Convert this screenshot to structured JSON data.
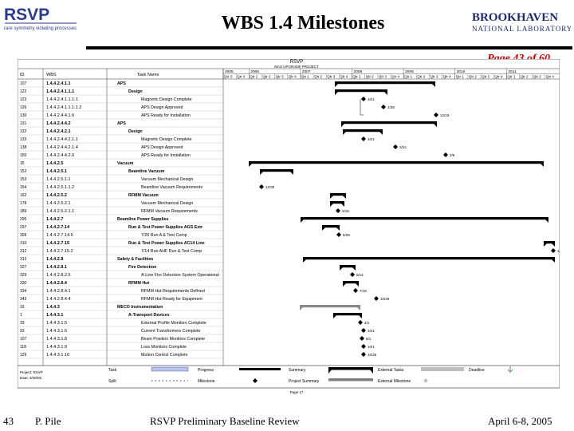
{
  "slide": {
    "title": "WBS 1.4 Milestones",
    "page_link": "Page 43 of 60",
    "left_logo": {
      "name": "RSVP",
      "tagline": "rare symmetry violating processes"
    },
    "right_logo": {
      "line1": "BROOKHAVEN",
      "line2": "NATIONAL LABORATORY"
    },
    "footer": {
      "slide_number": "43",
      "author": "P. Pile",
      "event": "RSVP Preliminary Baseline Review",
      "date": "April 6-8, 2005"
    }
  },
  "gantt": {
    "header_title": "RSVP",
    "header_subtitle": "MAS UPGRADE PROJECT",
    "col_id": "ID",
    "col_wbs": "WBS",
    "col_task": "Task Name",
    "years": [
      "2005",
      "2006",
      "2007",
      "2008",
      "2009",
      "2010",
      "2011"
    ],
    "quarters": [
      "Qtr 3",
      "Qtr 4",
      "Qtr 1",
      "Qtr 2",
      "Qtr 3",
      "Qtr 4",
      "Qtr 1",
      "Qtr 2",
      "Qtr 3",
      "Qtr 4",
      "Qtr 1",
      "Qtr 2",
      "Qtr 3",
      "Qtr 4",
      "Qtr 1",
      "Qtr 2",
      "Qtr 3",
      "Qtr 4",
      "Qtr 1",
      "Qtr 2",
      "Qtr 3",
      "Qtr 4",
      "Qtr 1",
      "Qtr 2",
      "Qtr 3",
      "Qtr 4"
    ],
    "rows": [
      {
        "id": "107",
        "wbs": "1.4.4.2.4.1.1",
        "task": "APS",
        "indent": 0
      },
      {
        "id": "122",
        "wbs": "1.4.4.2.4.1.1.1",
        "task": "Design",
        "indent": 1
      },
      {
        "id": "123",
        "wbs": "1.4.4.2.4.1.1.1.1",
        "task": "Magnetic Design Complete",
        "indent": 2
      },
      {
        "id": "126",
        "wbs": "1.4.4.2.4.1.1.1.1.2",
        "task": "APS Design Approved",
        "indent": 2
      },
      {
        "id": "130",
        "wbs": "1.4.4.2.4.4.1.6",
        "task": "APS Ready for Installation",
        "indent": 2
      },
      {
        "id": "131",
        "wbs": "1.4.4.2.4.4.2",
        "task": "APS",
        "indent": 0
      },
      {
        "id": "132",
        "wbs": "1.4.4.2.4.2.1",
        "task": "Design",
        "indent": 1
      },
      {
        "id": "133",
        "wbs": "1.4.4.2.4.4.2.1.1",
        "task": "Magnetic Design Complete",
        "indent": 2
      },
      {
        "id": "138",
        "wbs": "1.4.4.2.4.4.2.1.4",
        "task": "APS Design Approved",
        "indent": 2
      },
      {
        "id": "150",
        "wbs": "1.4.4.2.4.4.2.6",
        "task": "APS Ready for Installation",
        "indent": 2
      },
      {
        "id": "15",
        "wbs": "1.4.4.2.5",
        "task": "Vacuum",
        "indent": 0
      },
      {
        "id": "152",
        "wbs": "1.4.4.2.5.1",
        "task": "Beamline Vacuum",
        "indent": 1
      },
      {
        "id": "153",
        "wbs": "1.4.4.2.5.1.1",
        "task": "Vacuum Mechanical Design",
        "indent": 2
      },
      {
        "id": "154",
        "wbs": "1.4.4.2.5.1.1.2",
        "task": "Beamline Vacuum Requirements",
        "indent": 2
      },
      {
        "id": "162",
        "wbs": "1.4.4.2.5.2",
        "task": "RFMM Vacuum",
        "indent": 1
      },
      {
        "id": "178",
        "wbs": "1.4.4.2.5.2.1",
        "task": "Vacuum Mechanical Design",
        "indent": 2
      },
      {
        "id": "189",
        "wbs": "1.4.4.2.5.2.1.1",
        "task": "RFMM Vacuum Requirements",
        "indent": 2
      },
      {
        "id": "295",
        "wbs": "1.4.4.2.7",
        "task": "Beamline Power Supplies",
        "indent": 0
      },
      {
        "id": "297",
        "wbs": "1.4.4.2.7.14",
        "task": "Run & Test Power Supplies AGS Extr",
        "indent": 1
      },
      {
        "id": "309",
        "wbs": "1.4.4.2.7.14.5",
        "task": "7/26 Run A & Test Comp",
        "indent": 2
      },
      {
        "id": "310",
        "wbs": "1.4.4.2.7.15",
        "task": "Run & Test Power Supplies AC14 Line",
        "indent": 1
      },
      {
        "id": "312",
        "wbs": "1.4.4.2.7.15.2",
        "task": "7/14 Run AHF Run & Test Comp",
        "indent": 2
      },
      {
        "id": "313",
        "wbs": "1.4.4.2.8",
        "task": "Safety & Facilities",
        "indent": 0
      },
      {
        "id": "327",
        "wbs": "1.4.4.2.8.1",
        "task": "Fire Detection",
        "indent": 1
      },
      {
        "id": "329",
        "wbs": "1.4.4.2.8.2.5",
        "task": "A-Line Fire Detection System Operational",
        "indent": 2
      },
      {
        "id": "330",
        "wbs": "1.4.4.2.8.4",
        "task": "RFMM Hut",
        "indent": 1
      },
      {
        "id": "334",
        "wbs": "1.4.4.2.8.4.1",
        "task": "RFMM Hut Requirements Defined",
        "indent": 2
      },
      {
        "id": "343",
        "wbs": "1.4.4.2.8.4.4",
        "task": "RFMM Hut Ready for Equipment",
        "indent": 2
      },
      {
        "id": "33",
        "wbs": "1.4.4.3",
        "task": "MECO Instrumentation",
        "indent": 0
      },
      {
        "id": "1",
        "wbs": "1.4.4.3.1",
        "task": "A-Transport Devices",
        "indent": 1
      },
      {
        "id": "33",
        "wbs": "1.4.4.3.1.5",
        "task": "External Profile Monitors Complete",
        "indent": 2
      },
      {
        "id": "93",
        "wbs": "1.4.4.3.1.6",
        "task": "Current Transformers Complete",
        "indent": 2
      },
      {
        "id": "107",
        "wbs": "1.4.4.3.1.8",
        "task": "Beam Position Monitors Complete",
        "indent": 2
      },
      {
        "id": "118",
        "wbs": "1.4.4.3.1.9",
        "task": "Loss Monitors Complete",
        "indent": 2
      },
      {
        "id": "129",
        "wbs": "1.4.4.3.1.10",
        "task": "Motion Control Complete",
        "indent": 2
      }
    ],
    "milestone_labels": [
      "10/1",
      "1/28",
      "12/15",
      "10/1",
      "3/24",
      "3/9",
      "12/30",
      "3/18",
      "5/28",
      "1/28",
      "9/14",
      "7/18",
      "10/29",
      "4/1",
      "10/1",
      "8/1",
      "10/1",
      "10/26"
    ],
    "legend": {
      "project_info": [
        "Project: RSVP",
        "Date: 3/28/05"
      ],
      "items": [
        "Task",
        "Progress",
        "Summary",
        "External Tasks",
        "Deadline",
        "Split",
        "Milestone",
        "Project Summary",
        "External Milestone"
      ]
    },
    "page_footer": "Page 17"
  }
}
